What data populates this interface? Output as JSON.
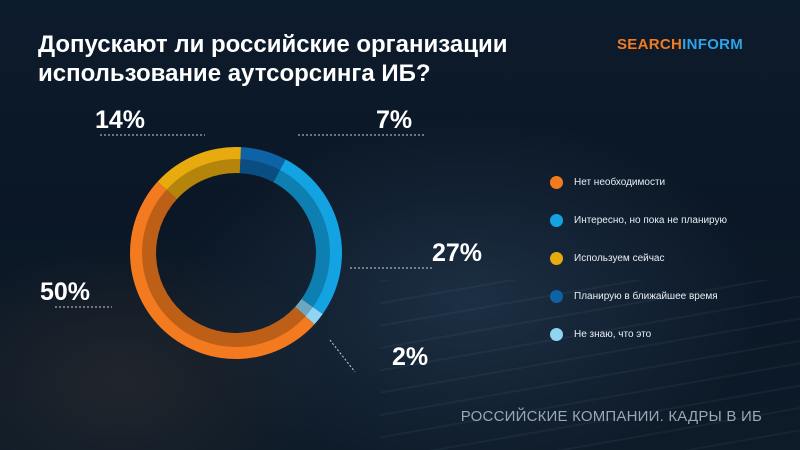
{
  "title_line1": "Допускают ли российские организации",
  "title_line2": "использование аутсорсинга ИБ?",
  "logo": {
    "part1": "SEARCH",
    "part2": "INFORM"
  },
  "footer": "РОССИЙСКИЕ КОМПАНИИ. КАДРЫ В ИБ",
  "chart_data": {
    "type": "pie",
    "title": "Допускают ли российские организации использование аутсорсинга ИБ?",
    "legend_position": "right",
    "slices": [
      {
        "name": "Нет необходимости",
        "value": 50,
        "label": "50%",
        "color": "#f47a1f"
      },
      {
        "name": "Интересно, но пока не планирую",
        "value": 27,
        "label": "27%",
        "color": "#13a3e3"
      },
      {
        "name": "Используем сейчас",
        "value": 14,
        "label": "14%",
        "color": "#e8ab0f"
      },
      {
        "name": "Планирую в ближайшее время",
        "value": 7,
        "label": "7%",
        "color": "#0d63a6"
      },
      {
        "name": "Не знаю, что это",
        "value": 2,
        "label": "2%",
        "color": "#8fd4f3"
      }
    ]
  }
}
